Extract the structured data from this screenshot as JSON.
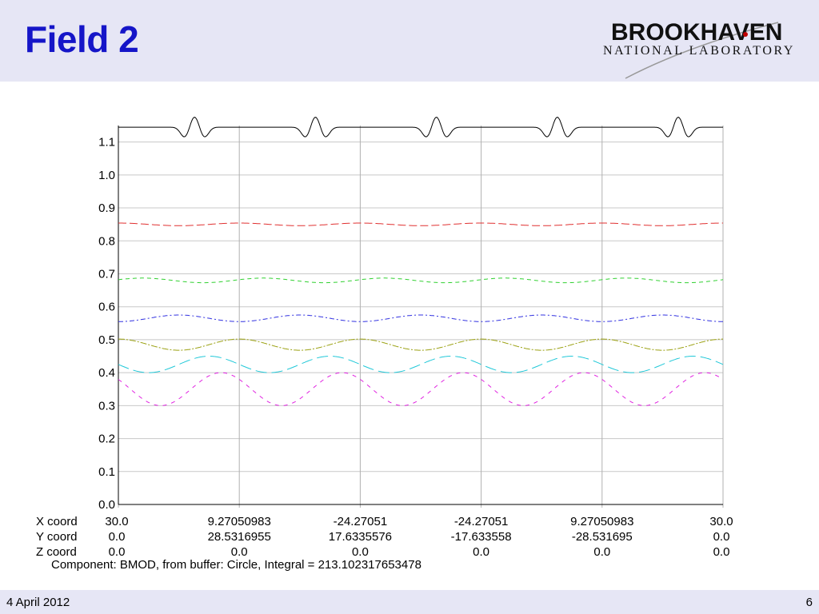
{
  "slide": {
    "title": "Field 2",
    "date": "4 April 2012",
    "page_number": "6"
  },
  "logo": {
    "line1": "BROOKHAVEN",
    "line2": "NATIONAL LABORATORY",
    "accent_color": "#c00000"
  },
  "colors": {
    "header_bg": "#e6e6f5",
    "title": "#1515c8"
  },
  "chart_data": {
    "type": "line",
    "ylim": [
      0.0,
      1.15
    ],
    "yticks": [
      "0.0",
      "0.1",
      "0.2",
      "0.3",
      "0.4",
      "0.5",
      "0.6",
      "0.7",
      "0.8",
      "0.9",
      "1.0",
      "1.1"
    ],
    "grid": true,
    "x": [
      0,
      1,
      2,
      3,
      4,
      5
    ],
    "coord_rows": [
      {
        "label": "X coord",
        "values": [
          "30.0",
          "9.27050983",
          "-24.27051",
          "-24.27051",
          "9.27050983",
          "30.0"
        ]
      },
      {
        "label": "Y coord",
        "values": [
          "0.0",
          "28.5316955",
          "17.6335576",
          "-17.633558",
          "-28.531695",
          "0.0"
        ]
      },
      {
        "label": "Z coord",
        "values": [
          "0.0",
          "0.0",
          "0.0",
          "0.0",
          "0.0",
          "0.0"
        ]
      }
    ],
    "caption": "Component: BMOD, from buffer: Circle, Integral = 213.102317653478",
    "series": [
      {
        "color": "#000000",
        "dash": "",
        "base": 1.145,
        "shape": "bumps",
        "amp": 0.035
      },
      {
        "color": "#e03030",
        "dash": "10,4",
        "base": 0.85,
        "phase": 0,
        "amp": 0.004
      },
      {
        "color": "#30d030",
        "dash": "5,4",
        "base": 0.68,
        "phase": 0.2,
        "amp": 0.007
      },
      {
        "color": "#3030e0",
        "dash": "6,3,2,3",
        "base": 0.565,
        "phase": 0.5,
        "amp": 0.01
      },
      {
        "color": "#9aa010",
        "dash": "8,2,2,2",
        "base": 0.485,
        "phase": 0.0,
        "amp": 0.017
      },
      {
        "color": "#20c8d8",
        "dash": "14,6",
        "base": 0.425,
        "phase": 0.75,
        "amp": 0.025
      },
      {
        "color": "#e020e0",
        "dash": "5,6",
        "base": 0.35,
        "phase": 0.85,
        "amp": 0.05
      }
    ]
  }
}
